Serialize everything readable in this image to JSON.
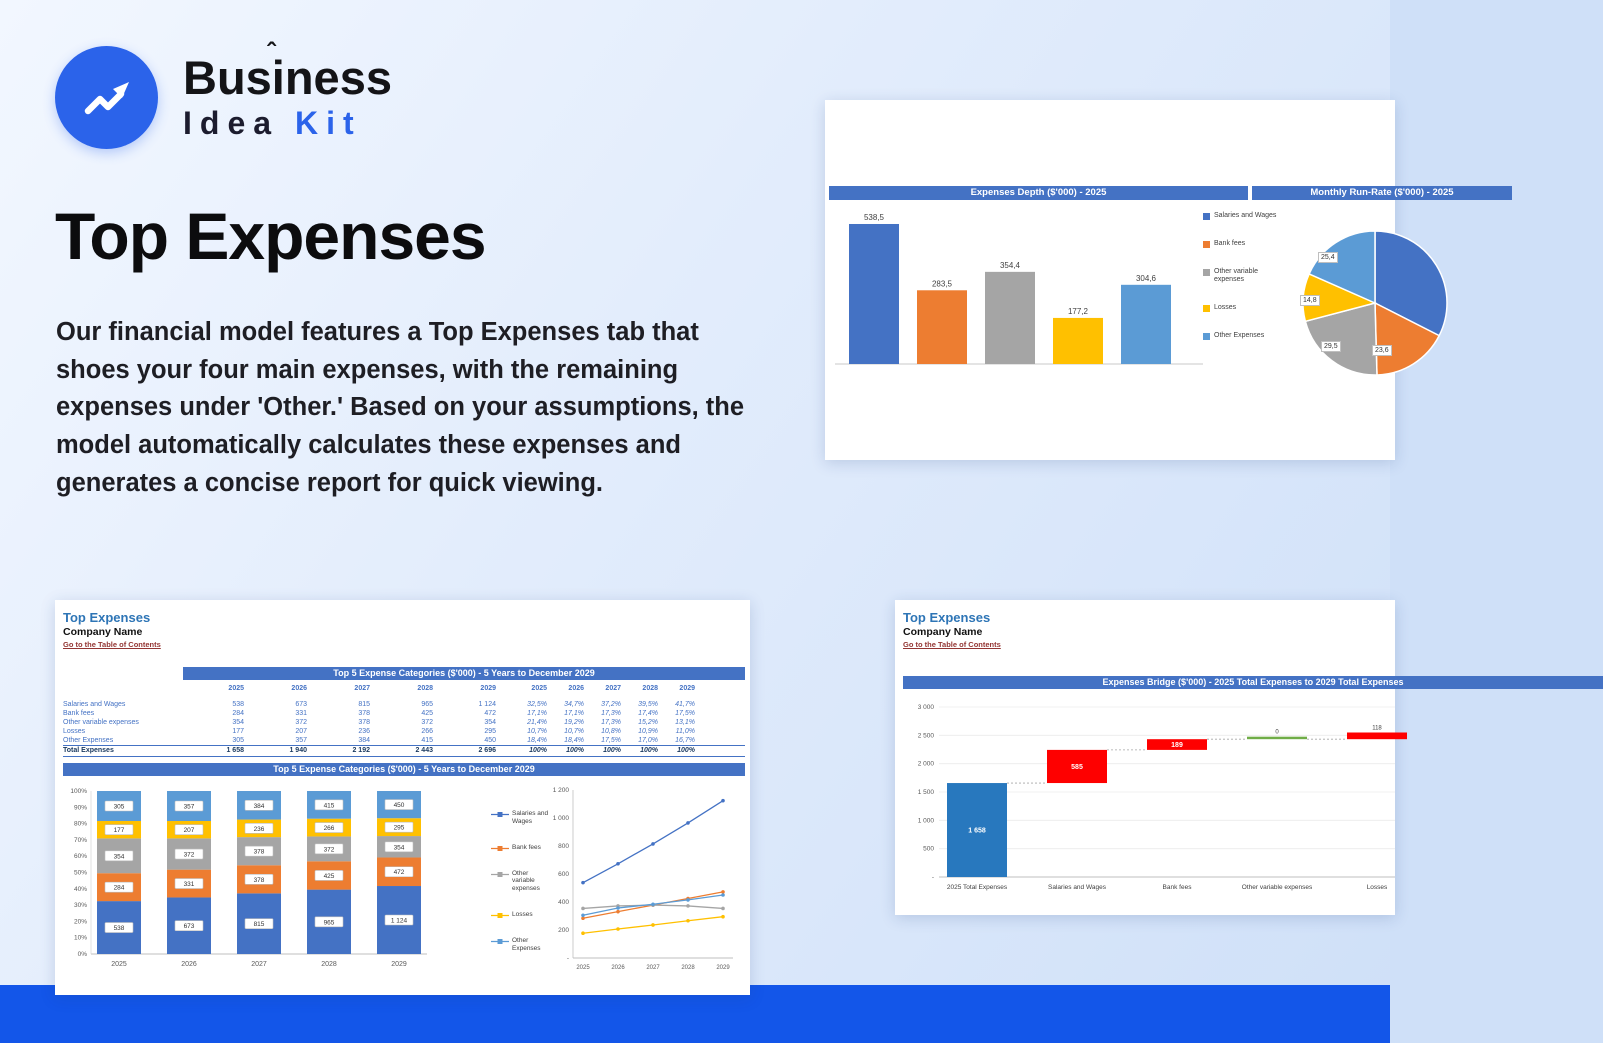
{
  "logo": {
    "brand_line1": "Business",
    "caret": "ˆ",
    "brand_line2_a": "Idea",
    "brand_line2_b": "Kit"
  },
  "hero": {
    "title": "Top Expenses",
    "description": "Our financial model features a Top Expenses tab that shoes your four main expenses, with the remaining expenses under 'Other.' Based on your assumptions, the model automatically calculates these expenses and generates a concise report for quick viewing."
  },
  "palette": {
    "blue": "#4472c4",
    "orange": "#ed7d31",
    "gray": "#a5a5a5",
    "yellow": "#ffc000",
    "steel": "#5b9bd5",
    "header": "#4472c4",
    "accent": "#2b63ea",
    "bridge_blue": "#2878be",
    "bridge_red": "#fe0000",
    "bridge_green": "#70ad47",
    "link_red": "#943634",
    "strip": "#1356e9"
  },
  "excel": {
    "sheet_title": "Top Expenses",
    "company": "Company Name",
    "toc_link": "Go to the Table of Contents"
  },
  "cards": {
    "top_right": {
      "header_left": "Expenses Depth ($'000) - 2025",
      "header_right": "Monthly Run-Rate ($'000) - 2025"
    },
    "bottom_left": {
      "table_header": "Top 5 Expense Categories ($'000) - 5 Years to December 2029",
      "chart_header": "Top 5 Expense Categories ($'000) - 5 Years to December 2029"
    },
    "bottom_right": {
      "header": "Expenses Bridge ($'000) - 2025 Total Expenses to 2029 Total Expenses"
    }
  },
  "chart_data": [
    {
      "id": "expenses_depth",
      "type": "bar",
      "title": "Expenses Depth ($'000) - 2025",
      "categories": [
        "Salaries and Wages",
        "Bank fees",
        "Other variable expenses",
        "Losses",
        "Other Expenses"
      ],
      "values": [
        538.5,
        283.5,
        354.4,
        177.2,
        304.6
      ],
      "value_labels": [
        "538,5",
        "283,5",
        "354,4",
        "177,2",
        "304,6"
      ],
      "colors": [
        "blue",
        "orange",
        "gray",
        "yellow",
        "steel"
      ],
      "ylim": [
        0,
        600
      ],
      "grid": false,
      "legend": [
        "Salaries and Wages",
        "Bank fees",
        "Other variable expenses",
        "Losses",
        "Other Expenses"
      ],
      "legend_position": "right"
    },
    {
      "id": "monthly_run_rate",
      "type": "pie",
      "title": "Monthly Run-Rate ($'000) - 2025",
      "slices": [
        {
          "name": "Salaries and Wages",
          "value": 44.9,
          "label": "",
          "color": "blue"
        },
        {
          "name": "Bank fees",
          "value": 23.6,
          "label": "23,6",
          "color": "orange"
        },
        {
          "name": "Other variable expenses",
          "value": 29.5,
          "label": "29,5",
          "color": "gray"
        },
        {
          "name": "Losses",
          "value": 14.8,
          "label": "14,8",
          "color": "yellow"
        },
        {
          "name": "Other Expenses",
          "value": 25.4,
          "label": "25,4",
          "color": "steel"
        }
      ]
    },
    {
      "id": "top5_table",
      "type": "table",
      "title": "Top 5 Expense Categories ($'000) - 5 Years to December 2029",
      "years": [
        "2025",
        "2026",
        "2027",
        "2028",
        "2029"
      ],
      "rows": [
        {
          "label": "Salaries and Wages",
          "values": [
            "538",
            "673",
            "815",
            "965",
            "1 124"
          ],
          "pct": [
            "32,5%",
            "34,7%",
            "37,2%",
            "39,5%",
            "41,7%"
          ]
        },
        {
          "label": "Bank fees",
          "values": [
            "284",
            "331",
            "378",
            "425",
            "472"
          ],
          "pct": [
            "17,1%",
            "17,1%",
            "17,3%",
            "17,4%",
            "17,5%"
          ]
        },
        {
          "label": "Other variable expenses",
          "values": [
            "354",
            "372",
            "378",
            "372",
            "354"
          ],
          "pct": [
            "21,4%",
            "19,2%",
            "17,3%",
            "15,2%",
            "13,1%"
          ]
        },
        {
          "label": "Losses",
          "values": [
            "177",
            "207",
            "236",
            "266",
            "295"
          ],
          "pct": [
            "10,7%",
            "10,7%",
            "10,8%",
            "10,9%",
            "11,0%"
          ]
        },
        {
          "label": "Other Expenses",
          "values": [
            "305",
            "357",
            "384",
            "415",
            "450"
          ],
          "pct": [
            "18,4%",
            "18,4%",
            "17,5%",
            "17,0%",
            "16,7%"
          ]
        }
      ],
      "total": {
        "label": "Total Expenses",
        "values": [
          "1 658",
          "1 940",
          "2 192",
          "2 443",
          "2 696"
        ],
        "pct": [
          "100%",
          "100%",
          "100%",
          "100%",
          "100%"
        ]
      }
    },
    {
      "id": "top5_stacked",
      "type": "bar-stacked",
      "title": "Top 5 Expense Categories ($'000) - 5 Years to December 2029",
      "categories": [
        "2025",
        "2026",
        "2027",
        "2028",
        "2029"
      ],
      "ylabels": [
        "0%",
        "10%",
        "20%",
        "30%",
        "40%",
        "50%",
        "60%",
        "70%",
        "80%",
        "90%",
        "100%"
      ],
      "series": [
        {
          "name": "Salaries and Wages",
          "color": "blue",
          "values": [
            538,
            673,
            815,
            965,
            1124
          ],
          "labels": [
            "538",
            "673",
            "815",
            "965",
            "1 124"
          ]
        },
        {
          "name": "Bank fees",
          "color": "orange",
          "values": [
            284,
            331,
            378,
            425,
            472
          ],
          "labels": [
            "284",
            "331",
            "378",
            "425",
            "472"
          ]
        },
        {
          "name": "Other variable expenses",
          "color": "gray",
          "values": [
            354,
            372,
            378,
            372,
            354
          ],
          "labels": [
            "354",
            "372",
            "378",
            "372",
            "354"
          ]
        },
        {
          "name": "Losses",
          "color": "yellow",
          "values": [
            177,
            207,
            236,
            266,
            295
          ],
          "labels": [
            "177",
            "207",
            "236",
            "266",
            "295"
          ]
        },
        {
          "name": "Other Expenses",
          "color": "steel",
          "values": [
            305,
            357,
            384,
            415,
            450
          ],
          "labels": [
            "305",
            "357",
            "384",
            "415",
            "450"
          ]
        }
      ]
    },
    {
      "id": "top5_lines",
      "type": "line",
      "x": [
        "2025",
        "2026",
        "2027",
        "2028",
        "2029"
      ],
      "ylim": [
        0,
        1200
      ],
      "yticks": [
        "-",
        "200",
        "400",
        "600",
        "800",
        "1 000",
        "1 200"
      ],
      "series": [
        {
          "name": "Salaries and Wages",
          "color": "blue",
          "values": [
            538,
            673,
            815,
            965,
            1124
          ]
        },
        {
          "name": "Bank fees",
          "color": "orange",
          "values": [
            284,
            331,
            378,
            425,
            472
          ]
        },
        {
          "name": "Other variable expenses",
          "color": "gray",
          "values": [
            354,
            372,
            378,
            372,
            354
          ]
        },
        {
          "name": "Losses",
          "color": "yellow",
          "values": [
            177,
            207,
            236,
            266,
            295
          ]
        },
        {
          "name": "Other Expenses",
          "color": "steel",
          "values": [
            305,
            357,
            384,
            415,
            450
          ]
        }
      ],
      "legend": [
        "Salaries and Wages",
        "Bank fees",
        "Other variable expenses",
        "Losses",
        "Other Expenses"
      ]
    },
    {
      "id": "expenses_bridge",
      "type": "waterfall",
      "title": "Expenses Bridge ($'000) - 2025 Total Expenses to 2029 Total Expenses",
      "categories": [
        "2025 Total Expenses",
        "Salaries and Wages",
        "Bank fees",
        "Other variable expenses",
        "Losses"
      ],
      "ylim": [
        0,
        3000
      ],
      "yticks": [
        "-",
        "500",
        "1 000",
        "1 500",
        "2 000",
        "2 500",
        "3 000"
      ],
      "steps": [
        {
          "start": 0,
          "value": 1658,
          "label": "1 658",
          "color": "bridge_blue"
        },
        {
          "start": 1658,
          "value": 585,
          "label": "585",
          "color": "bridge_red"
        },
        {
          "start": 2243,
          "value": 189,
          "label": "189",
          "color": "bridge_red"
        },
        {
          "start": 2432,
          "value": 0,
          "label": "0",
          "color": "bridge_green"
        },
        {
          "start": 2432,
          "value": 118,
          "label": "118",
          "color": "bridge_red"
        }
      ]
    }
  ]
}
